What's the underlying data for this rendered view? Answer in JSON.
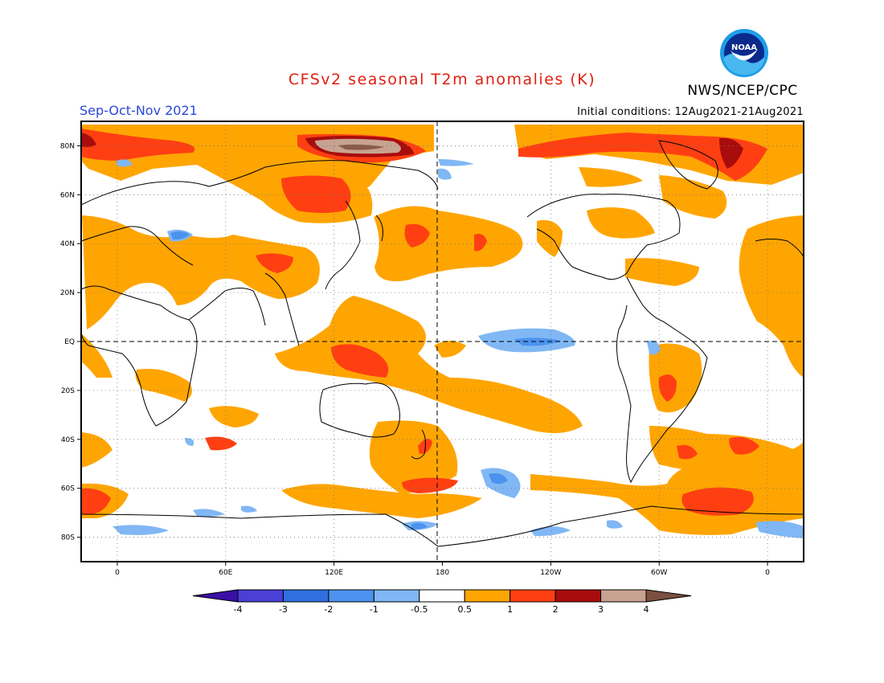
{
  "header": {
    "title": "CFSv2 seasonal T2m anomalies (K)",
    "season": "Sep-Oct-Nov 2021",
    "agency": "NWS/NCEP/CPC",
    "initial_conditions": "Initial conditions: 12Aug2021-21Aug2021",
    "logo_text": "NOAA"
  },
  "map": {
    "projection": "cylindrical equidistant",
    "lon_range": [
      -20,
      380
    ],
    "lat_range": [
      -90,
      90
    ],
    "central_meridian": "180",
    "lat_ticks": [
      {
        "lat": 80,
        "label": "80N"
      },
      {
        "lat": 60,
        "label": "60N"
      },
      {
        "lat": 40,
        "label": "40N"
      },
      {
        "lat": 20,
        "label": "20N"
      },
      {
        "lat": 0,
        "label": "EQ"
      },
      {
        "lat": -20,
        "label": "20S"
      },
      {
        "lat": -40,
        "label": "40S"
      },
      {
        "lat": -60,
        "label": "60S"
      },
      {
        "lat": -80,
        "label": "80S"
      }
    ],
    "lon_ticks": [
      {
        "lon": 0,
        "label": "0"
      },
      {
        "lon": 60,
        "label": "60E"
      },
      {
        "lon": 120,
        "label": "120E"
      },
      {
        "lon": 180,
        "label": "180"
      },
      {
        "lon": 240,
        "label": "120W"
      },
      {
        "lon": 300,
        "label": "60W"
      },
      {
        "lon": 360,
        "label": "0"
      }
    ],
    "grid": "dotted",
    "ocean_color": "#ffffff",
    "coastline_color": "#000000"
  },
  "anomaly_regions": [
    {
      "name": "arctic-atlantic-sector",
      "level": 1,
      "color": "#ff3f12",
      "lon": [
        -20,
        10
      ],
      "lat": [
        78,
        88
      ]
    },
    {
      "name": "east-siberian-arctic",
      "level": 4,
      "color": "#c8a291",
      "lon": [
        95,
        150
      ],
      "lat": [
        76,
        86
      ]
    },
    {
      "name": "central-siberia",
      "level": 1,
      "color": "#ff3f12",
      "lon": [
        95,
        125
      ],
      "lat": [
        55,
        67
      ]
    },
    {
      "name": "north-pacific-west",
      "level": 1,
      "color": "#ff3f12",
      "lon": [
        160,
        170
      ],
      "lat": [
        38,
        46
      ]
    },
    {
      "name": "maritime-continent",
      "level": 1,
      "color": "#ff3f12",
      "lon": [
        120,
        150
      ],
      "lat": [
        -12,
        0
      ]
    },
    {
      "name": "equatorial-pacific-cool",
      "level": -0.5,
      "color": "#5ea1f0",
      "lon": [
        200,
        250
      ],
      "lat": [
        -4,
        4
      ]
    },
    {
      "name": "greenland-arctic",
      "level": 3,
      "color": "#a80c0c",
      "lon": [
        330,
        350
      ],
      "lat": [
        72,
        84
      ]
    },
    {
      "name": "southern-ocean-atlantic",
      "level": 1,
      "color": "#ff3f12",
      "lon": [
        320,
        350
      ],
      "lat": [
        -72,
        -60
      ]
    },
    {
      "name": "tasman-sea",
      "level": 1,
      "color": "#ff3f12",
      "lon": [
        160,
        180
      ],
      "lat": [
        -62,
        -54
      ]
    }
  ],
  "colorbar": {
    "labels": [
      "-4",
      "-3",
      "-2",
      "-1",
      "-0.5",
      "0.5",
      "1",
      "2",
      "3",
      "4"
    ],
    "colors": [
      "#3a0fa5",
      "#4a3fd6",
      "#2f6fe0",
      "#4b93ee",
      "#80b7f4",
      "#ffffff",
      "#ffa502",
      "#ff3f12",
      "#a80c0c",
      "#c8a291",
      "#7a5040"
    ]
  }
}
